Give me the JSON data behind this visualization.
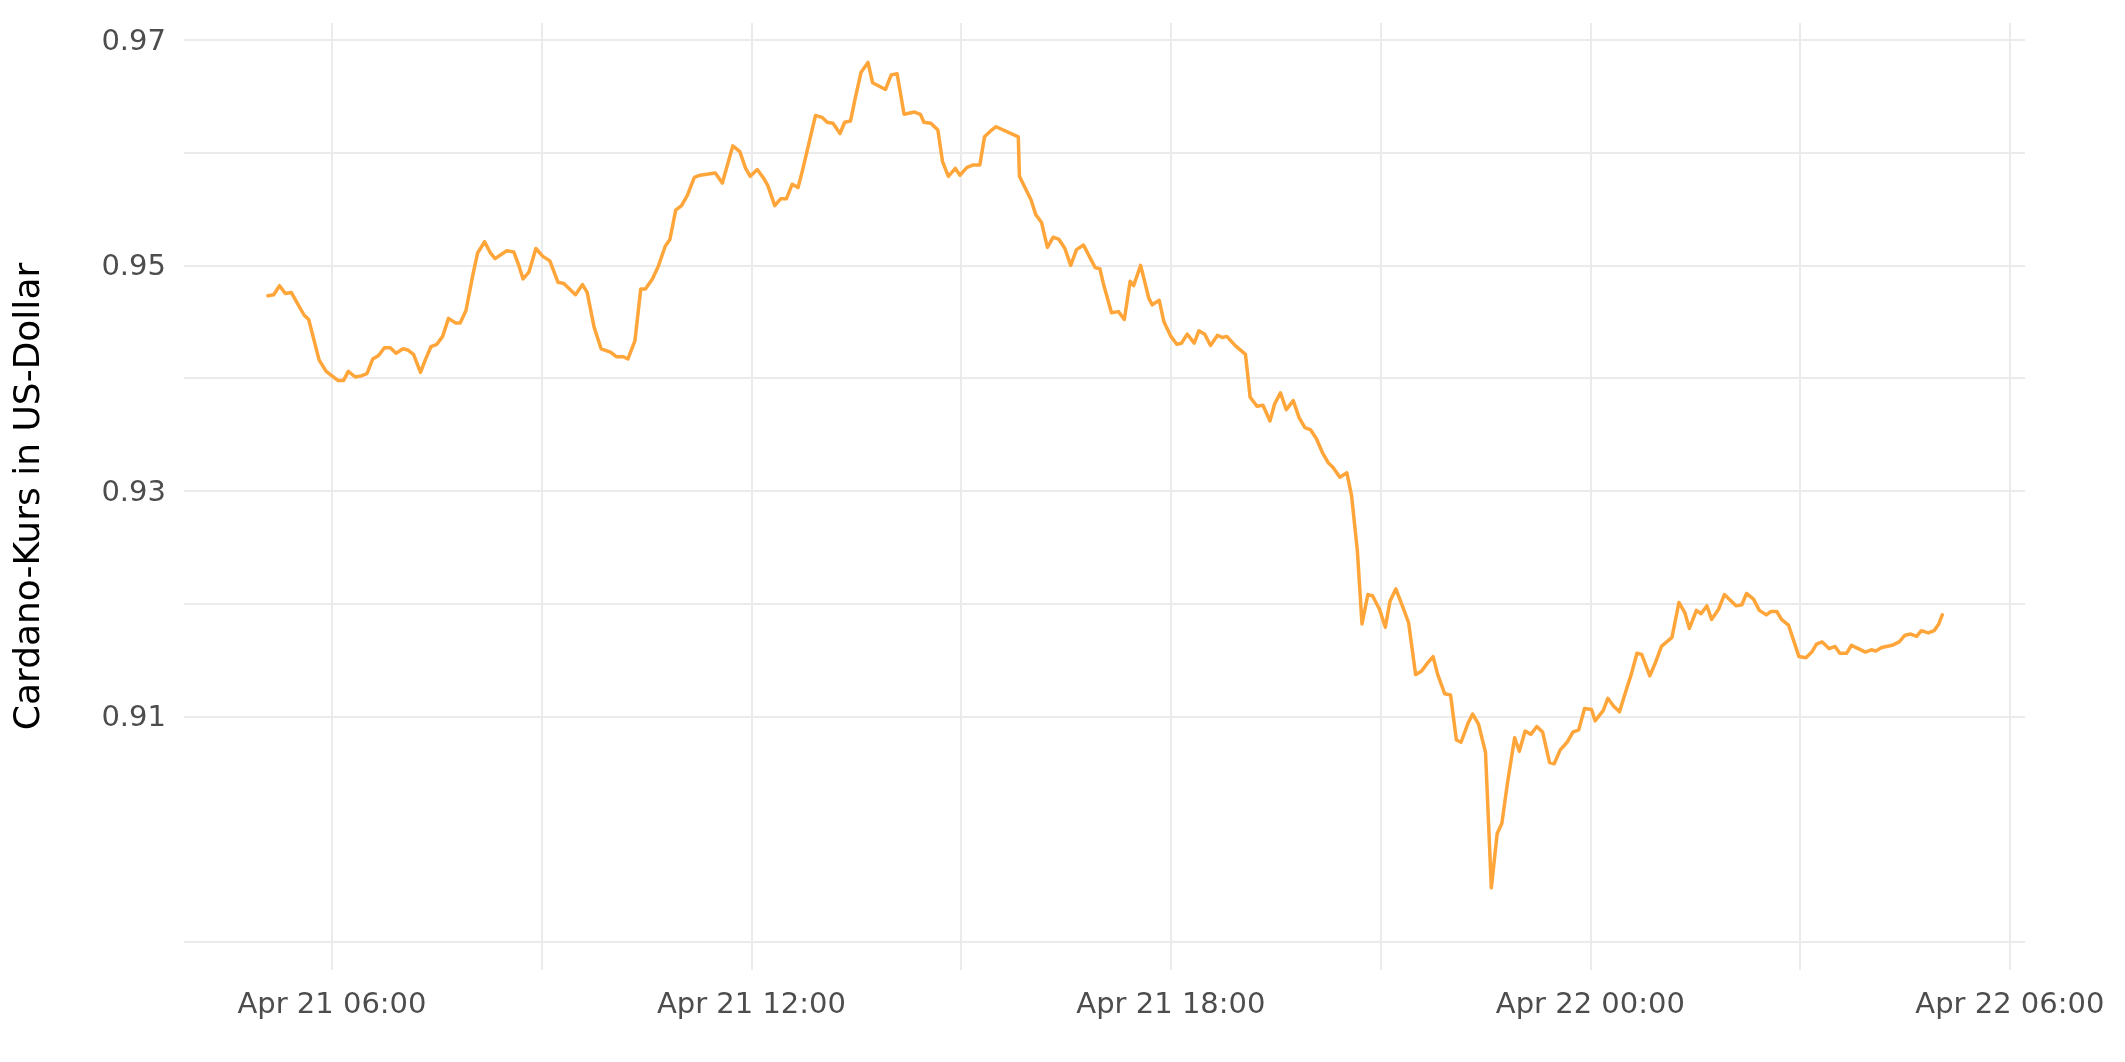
{
  "chart_data": {
    "type": "line",
    "ylabel": "Cardano-Kurs in US-Dollar",
    "xlim": [
      "--04-21T03:53",
      "--04-22T06:13"
    ],
    "ylim": [
      0.8875,
      0.9715
    ],
    "xticks": [
      {
        "value": "--04-21T06:00",
        "label": "Apr 21 06:00"
      },
      {
        "value": "--04-21T09:00",
        "label": null
      },
      {
        "value": "--04-21T12:00",
        "label": "Apr 21 12:00"
      },
      {
        "value": "--04-21T15:00",
        "label": null
      },
      {
        "value": "--04-21T18:00",
        "label": "Apr 21 18:00"
      },
      {
        "value": "--04-21T21:00",
        "label": null
      },
      {
        "value": "--04-22T00:00",
        "label": "Apr 22 00:00"
      },
      {
        "value": "--04-22T03:00",
        "label": null
      },
      {
        "value": "--04-22T06:00",
        "label": "Apr 22 06:00"
      }
    ],
    "yticks": [
      {
        "value": 0.89,
        "label": null
      },
      0.91,
      {
        "value": 0.92,
        "label": null
      },
      0.93,
      {
        "value": 0.94,
        "label": null
      },
      0.95,
      {
        "value": 0.96,
        "label": null
      },
      0.97
    ],
    "grid": true,
    "x": [
      "--04-21T05:05",
      "--04-21T05:10",
      "--04-21T05:15",
      "--04-21T05:20",
      "--04-21T05:25",
      "--04-21T05:36",
      "--04-21T05:40",
      "--04-21T05:49",
      "--04-21T05:55",
      "--04-21T06:05",
      "--04-21T06:10",
      "--04-21T06:14",
      "--04-21T06:20",
      "--04-21T06:25",
      "--04-21T06:30",
      "--04-21T06:35",
      "--04-21T06:40",
      "--04-21T06:45",
      "--04-21T06:50",
      "--04-21T06:55",
      "--04-21T07:01",
      "--04-21T07:05",
      "--04-21T07:10",
      "--04-21T07:16",
      "--04-21T07:20",
      "--04-21T07:25",
      "--04-21T07:30",
      "--04-21T07:35",
      "--04-21T07:40",
      "--04-21T07:46",
      "--04-21T07:50",
      "--04-21T07:55",
      "--04-21T08:01",
      "--04-21T08:05",
      "--04-21T08:11",
      "--04-21T08:16",
      "--04-21T08:20",
      "--04-21T08:30",
      "--04-21T08:36",
      "--04-21T08:40",
      "--04-21T08:44",
      "--04-21T08:49",
      "--04-21T08:55",
      "--04-21T09:01",
      "--04-21T09:07",
      "--04-21T09:14",
      "--04-21T09:19",
      "--04-21T09:23",
      "--04-21T09:29",
      "--04-21T09:35",
      "--04-21T09:39",
      "--04-21T09:45",
      "--04-21T09:51",
      "--04-21T09:59",
      "--04-21T10:04",
      "--04-21T10:10",
      "--04-21T10:14",
      "--04-21T10:20",
      "--04-21T10:25",
      "--04-21T10:29",
      "--04-21T10:35",
      "--04-21T10:40",
      "--04-21T10:46",
      "--04-21T10:50",
      "--04-21T10:55",
      "--04-21T11:00",
      "--04-21T11:05",
      "--04-21T11:11",
      "--04-21T11:16",
      "--04-21T11:23",
      "--04-21T11:29",
      "--04-21T11:35",
      "--04-21T11:44",
      "--04-21T11:50",
      "--04-21T11:55",
      "--04-21T11:59",
      "--04-21T12:05",
      "--04-21T12:10",
      "--04-21T12:14",
      "--04-21T12:20",
      "--04-21T12:25",
      "--04-21T12:30",
      "--04-21T12:35",
      "--04-21T12:40",
      "--04-21T12:44",
      "--04-21T12:55",
      "--04-21T13:01",
      "--04-21T13:05",
      "--04-21T13:10",
      "--04-21T13:16",
      "--04-21T13:20",
      "--04-21T13:25",
      "--04-21T13:29",
      "--04-21T13:34",
      "--04-21T13:40",
      "--04-21T13:44",
      "--04-21T13:55",
      "--04-21T14:00",
      "--04-21T14:05",
      "--04-21T14:11",
      "--04-21T14:20",
      "--04-21T14:25",
      "--04-21T14:28",
      "--04-21T14:34",
      "--04-21T14:40",
      "--04-21T14:44",
      "--04-21T14:49",
      "--04-21T14:55",
      "--04-21T14:59",
      "--04-21T15:05",
      "--04-21T15:10",
      "--04-21T15:16",
      "--04-21T15:20",
      "--04-21T15:25",
      "--04-21T15:30",
      "--04-21T15:49",
      "--04-21T15:50",
      "--04-21T16:00",
      "--04-21T16:04",
      "--04-21T16:09",
      "--04-21T16:14",
      "--04-21T16:19",
      "--04-21T16:24",
      "--04-21T16:29",
      "--04-21T16:34",
      "--04-21T16:39",
      "--04-21T16:45",
      "--04-21T16:49",
      "--04-21T16:55",
      "--04-21T16:59",
      "--04-21T17:02",
      "--04-21T17:09",
      "--04-21T17:15",
      "--04-21T17:20",
      "--04-21T17:25",
      "--04-21T17:28",
      "--04-21T17:34",
      "--04-21T17:41",
      "--04-21T17:44",
      "--04-21T17:50",
      "--04-21T17:54",
      "--04-21T18:00",
      "--04-21T18:05",
      "--04-21T18:09",
      "--04-21T18:14",
      "--04-21T18:20",
      "--04-21T18:24",
      "--04-21T18:29",
      "--04-21T18:34",
      "--04-21T18:40",
      "--04-21T18:44",
      "--04-21T18:48",
      "--04-21T18:55",
      "--04-21T19:04",
      "--04-21T19:08",
      "--04-21T19:14",
      "--04-21T19:19",
      "--04-21T19:25",
      "--04-21T19:29",
      "--04-21T19:34",
      "--04-21T19:39",
      "--04-21T19:45",
      "--04-21T19:50",
      "--04-21T19:55",
      "--04-21T20:00",
      "--04-21T20:05",
      "--04-21T20:10",
      "--04-21T20:15",
      "--04-21T20:19",
      "--04-21T20:25",
      "--04-21T20:31",
      "--04-21T20:35",
      "--04-21T20:40",
      "--04-21T20:44",
      "--04-21T20:49",
      "--04-21T20:53",
      "--04-21T20:59",
      "--04-21T21:04",
      "--04-21T21:08",
      "--04-21T21:13",
      "--04-21T21:19",
      "--04-21T21:24",
      "--04-21T21:30",
      "--04-21T21:35",
      "--04-21T21:40",
      "--04-21T21:45",
      "--04-21T21:49",
      "--04-21T21:55",
      "--04-21T22:00",
      "--04-21T22:05",
      "--04-21T22:09",
      "--04-21T22:15",
      "--04-21T22:19",
      "--04-21T22:24",
      "--04-21T22:30",
      "--04-21T22:35",
      "--04-21T22:40",
      "--04-21T22:44",
      "--04-21T22:49",
      "--04-21T22:55",
      "--04-21T22:59",
      "--04-21T23:04",
      "--04-21T23:09",
      "--04-21T23:14",
      "--04-21T23:19",
      "--04-21T23:25",
      "--04-21T23:29",
      "--04-21T23:34",
      "--04-21T23:40",
      "--04-21T23:45",
      "--04-21T23:50",
      "--04-21T23:55",
      "--04-22T00:01",
      "--04-22T00:04",
      "--04-22T00:11",
      "--04-22T00:15",
      "--04-22T00:20",
      "--04-22T00:25",
      "--04-22T00:30",
      "--04-22T00:35",
      "--04-22T00:40",
      "--04-22T00:44",
      "--04-22T00:51",
      "--04-22T00:56",
      "--04-22T01:01",
      "--04-22T01:10",
      "--04-22T01:16",
      "--04-22T01:21",
      "--04-22T01:25",
      "--04-22T01:31",
      "--04-22T01:35",
      "--04-22T01:40",
      "--04-22T01:44",
      "--04-22T01:50",
      "--04-22T01:55",
      "--04-22T02:05",
      "--04-22T02:10",
      "--04-22T02:14",
      "--04-22T02:20",
      "--04-22T02:25",
      "--04-22T02:31",
      "--04-22T02:35",
      "--04-22T02:40",
      "--04-22T02:44",
      "--04-22T02:50",
      "--04-22T02:59",
      "--04-22T03:05",
      "--04-22T03:10",
      "--04-22T03:14",
      "--04-22T03:19",
      "--04-22T03:25",
      "--04-22T03:30",
      "--04-22T03:34",
      "--04-22T03:40",
      "--04-22T03:44",
      "--04-22T03:50",
      "--04-22T03:56",
      "--04-22T04:01",
      "--04-22T04:05",
      "--04-22T04:10",
      "--04-22T04:19",
      "--04-22T04:25",
      "--04-22T04:30",
      "--04-22T04:35",
      "--04-22T04:40",
      "--04-22T04:44",
      "--04-22T04:50",
      "--04-22T04:55",
      "--04-22T04:59",
      "--04-22T05:02"
    ],
    "series": [
      {
        "color": "#ffa539",
        "values": [
          0.9473,
          0.9474,
          0.9482,
          0.9475,
          0.9476,
          0.9456,
          0.9452,
          0.9416,
          0.9406,
          0.9398,
          0.9398,
          0.9406,
          0.9401,
          0.9402,
          0.9404,
          0.9417,
          0.942,
          0.9427,
          0.9427,
          0.9422,
          0.9426,
          0.9425,
          0.9421,
          0.9405,
          0.9416,
          0.9428,
          0.943,
          0.9437,
          0.9453,
          0.9449,
          0.9449,
          0.946,
          0.9492,
          0.9511,
          0.9521,
          0.9511,
          0.9506,
          0.9513,
          0.9512,
          0.9501,
          0.9488,
          0.9494,
          0.9515,
          0.9508,
          0.9504,
          0.9485,
          0.9484,
          0.948,
          0.9474,
          0.9483,
          0.9476,
          0.9445,
          0.9426,
          0.9423,
          0.9419,
          0.9419,
          0.9417,
          0.9433,
          0.9479,
          0.9479,
          0.9488,
          0.9499,
          0.9517,
          0.9523,
          0.9549,
          0.9553,
          0.9562,
          0.9578,
          0.958,
          0.9581,
          0.9582,
          0.9573,
          0.9606,
          0.9601,
          0.9586,
          0.9579,
          0.9585,
          0.9578,
          0.9571,
          0.9553,
          0.9559,
          0.9559,
          0.9572,
          0.9569,
          0.9585,
          0.9633,
          0.9631,
          0.9627,
          0.9626,
          0.9617,
          0.9627,
          0.9628,
          0.9648,
          0.9671,
          0.968,
          0.9662,
          0.9656,
          0.9669,
          0.967,
          0.9634,
          0.9636,
          0.9634,
          0.9627,
          0.9626,
          0.962,
          0.9592,
          0.9579,
          0.9586,
          0.958,
          0.9587,
          0.9589,
          0.9589,
          0.9614,
          0.9619,
          0.9623,
          0.9614,
          0.9579,
          0.9558,
          0.9545,
          0.9538,
          0.9516,
          0.9525,
          0.9523,
          0.9515,
          0.95,
          0.9514,
          0.9518,
          0.951,
          0.9498,
          0.9497,
          0.9484,
          0.9458,
          0.9459,
          0.9452,
          0.9486,
          0.9482,
          0.95,
          0.9471,
          0.9465,
          0.9469,
          0.945,
          0.9437,
          0.943,
          0.9431,
          0.9439,
          0.9431,
          0.9442,
          0.9439,
          0.9429,
          0.9438,
          0.9436,
          0.9437,
          0.9429,
          0.9421,
          0.9383,
          0.9375,
          0.9376,
          0.9362,
          0.9377,
          0.9387,
          0.9372,
          0.938,
          0.9365,
          0.9356,
          0.9354,
          0.9346,
          0.9334,
          0.9325,
          0.9321,
          0.9312,
          0.9316,
          0.9296,
          0.9247,
          0.9182,
          0.9208,
          0.9207,
          0.9195,
          0.9179,
          0.9202,
          0.9213,
          0.9197,
          0.9183,
          0.9137,
          0.914,
          0.9147,
          0.9153,
          0.9137,
          0.912,
          0.9119,
          0.9079,
          0.9077,
          0.9094,
          0.9102,
          0.9093,
          0.9068,
          0.8948,
          0.8996,
          0.9005,
          0.9042,
          0.9081,
          0.9069,
          0.9087,
          0.9084,
          0.9091,
          0.9086,
          0.9059,
          0.9058,
          0.907,
          0.9077,
          0.9086,
          0.9088,
          0.9107,
          0.9106,
          0.9096,
          0.9105,
          0.9116,
          0.9109,
          0.9104,
          0.9121,
          0.9137,
          0.9156,
          0.9155,
          0.9136,
          0.9148,
          0.9162,
          0.917,
          0.9201,
          0.9192,
          0.9178,
          0.9194,
          0.9191,
          0.9198,
          0.9186,
          0.9195,
          0.9208,
          0.9198,
          0.9199,
          0.9209,
          0.9204,
          0.9194,
          0.919,
          0.9193,
          0.9193,
          0.9186,
          0.9181,
          0.9153,
          0.9152,
          0.9157,
          0.9164,
          0.9166,
          0.916,
          0.9162,
          0.9156,
          0.9156,
          0.9163,
          0.916,
          0.9157,
          0.9159,
          0.9158,
          0.9161,
          0.9163,
          0.9166,
          0.9172,
          0.9173,
          0.9171,
          0.9176,
          0.9174,
          0.9176,
          0.9182,
          0.919
        ]
      }
    ]
  }
}
